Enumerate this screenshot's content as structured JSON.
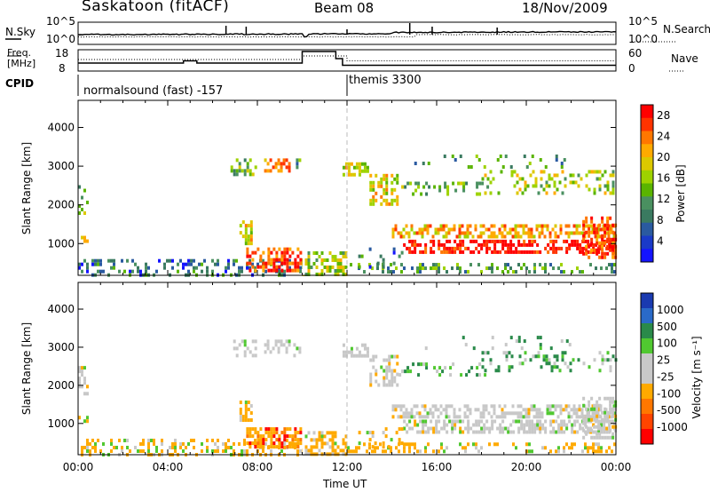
{
  "header": {
    "station": "Saskatoon (fitACF)",
    "beam": "Beam 08",
    "date": "18/Nov/2009"
  },
  "noise_panel": {
    "left_label": "N.Sky",
    "right_label": "N.Search",
    "left_ticks": [
      "10^5",
      "10^0"
    ],
    "right_ticks": [
      "10^5",
      "10^0"
    ]
  },
  "freq_panel": {
    "left_label_line1": "Freq.",
    "left_label_line2": "[MHz]",
    "right_label": "Nave",
    "left_ticks": [
      "18",
      "8"
    ],
    "right_ticks": [
      "60",
      "0"
    ]
  },
  "cpid": {
    "label": "CPID",
    "modes": [
      {
        "name": "normalsound (fast) -157",
        "start_hour": 0
      },
      {
        "name": "themis 3300",
        "start_hour": 12
      }
    ]
  },
  "chart_data": [
    {
      "type": "heatmap",
      "name": "Power",
      "ylabel": "Slant Range [km]",
      "ylim": [
        180,
        4700
      ],
      "xlim": [
        0,
        24
      ],
      "yticks": [
        "1000",
        "2000",
        "3000",
        "4000"
      ],
      "colorbar_label": "Power [dB]",
      "colorbar_ticks": [
        "28",
        "24",
        "20",
        "16",
        "12",
        "8",
        "4"
      ],
      "colorbar_colors": [
        "#ff0000",
        "#ff3300",
        "#ff7700",
        "#ffaa00",
        "#dcc800",
        "#9ed200",
        "#5ab400",
        "#4a9060",
        "#3a7a60",
        "#2a5aa0",
        "#1a3ac8",
        "#1414ff"
      ],
      "colorbar_range": [
        0,
        30
      ]
    },
    {
      "type": "heatmap",
      "name": "Velocity",
      "ylabel": "Slant Range [km]",
      "ylim": [
        180,
        4700
      ],
      "xlim": [
        0,
        24
      ],
      "yticks": [
        "1000",
        "2000",
        "3000",
        "4000"
      ],
      "colorbar_label": "Velocity [m s⁻¹]",
      "colorbar_ticks": [
        "1000",
        "500",
        "100",
        "25",
        "-25",
        "-100",
        "-500",
        "-1000"
      ],
      "colorbar_colors": [
        "#1a3ab0",
        "#2a6ac8",
        "#2a8a4a",
        "#50c830",
        "#c8c8c8",
        "#c8c8c8",
        "#ffaa00",
        "#ff7700",
        "#ff4400",
        "#ff0000"
      ]
    }
  ],
  "x_axis": {
    "ticks": [
      "00:00",
      "04:00",
      "08:00",
      "12:00",
      "16:00",
      "20:00",
      "00:00"
    ],
    "label": "Time UT"
  }
}
